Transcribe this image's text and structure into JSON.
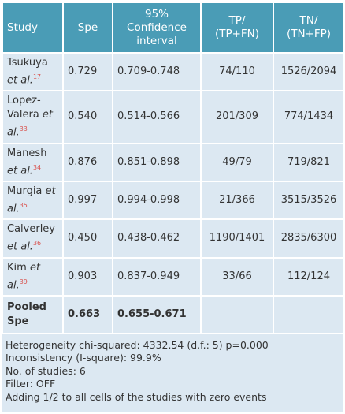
{
  "table": {
    "header": [
      "Study",
      "Spe",
      [
        "95%",
        "Confidence",
        "interval"
      ],
      [
        "TP/",
        "(TP+FN)"
      ],
      [
        "TN/",
        "(TN+FP)"
      ]
    ],
    "rows": [
      {
        "study": {
          "name": "Tsukuya",
          "etal": "et al.",
          "ref": "17"
        },
        "spe": "0.729",
        "ci": "0.709-0.748",
        "tp": "74/110",
        "tn": "1526/2094"
      },
      {
        "study": {
          "name": "Lopez-Valera",
          "etal": "et al.",
          "ref": "33"
        },
        "spe": "0.540",
        "ci": "0.514-0.566",
        "tp": "201/309",
        "tn": "774/1434"
      },
      {
        "study": {
          "name": "Manesh",
          "etal": "et al.",
          "ref": "34"
        },
        "spe": "0.876",
        "ci": "0.851-0.898",
        "tp": "49/79",
        "tn": "719/821"
      },
      {
        "study": {
          "name": "Murgia",
          "etal": "et al.",
          "ref": "35"
        },
        "spe": "0.997",
        "ci": "0.994-0.998",
        "tp": "21/366",
        "tn": "3515/3526"
      },
      {
        "study": {
          "name": "Calverley",
          "etal": "et al.",
          "ref": "36"
        },
        "spe": "0.450",
        "ci": "0.438-0.462",
        "tp": "1190/1401",
        "tn": "2835/6300"
      },
      {
        "study": {
          "name": "Kim",
          "etal": "et al.",
          "ref": "39"
        },
        "spe": "0.903",
        "ci": "0.837-0.949",
        "tp": "33/66",
        "tn": "112/124"
      }
    ],
    "pooled": {
      "study": "Pooled Spe",
      "spe": "0.663",
      "ci": "0.655-0.671"
    }
  },
  "footer": [
    "Heterogeneity chi-squared: 4332.54 (d.f.: 5) p=0.000",
    "Inconsistency (I-square): 99.9%",
    "No. of studies: 6",
    "Filter: OFF",
    "Adding 1/2 to all cells of the studies with zero events"
  ]
}
